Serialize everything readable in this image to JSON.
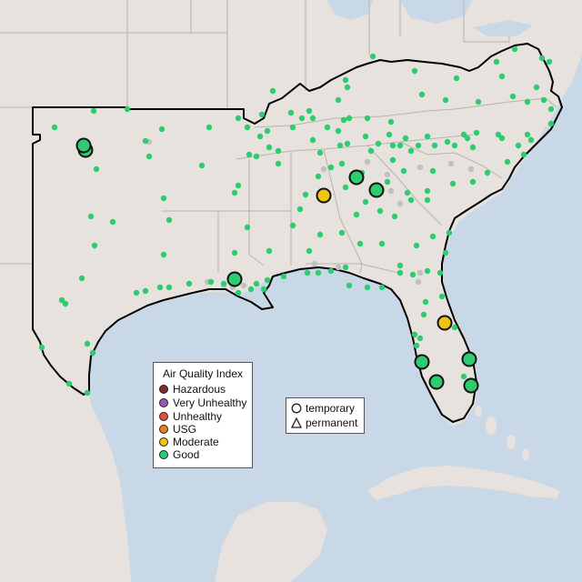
{
  "legend": {
    "title": "Air Quality Index",
    "items": [
      {
        "label": "Hazardous",
        "color": "#7e2c2c"
      },
      {
        "label": "Very Unhealthy",
        "color": "#9b59b6"
      },
      {
        "label": "Unhealthy",
        "color": "#e74c3c"
      },
      {
        "label": "USG",
        "color": "#e67e22"
      },
      {
        "label": "Moderate",
        "color": "#f1c40f"
      },
      {
        "label": "Good",
        "color": "#2ecc71"
      }
    ]
  },
  "shape_legend": {
    "items": [
      {
        "label": "temporary",
        "icon": "circle-outline-icon"
      },
      {
        "label": "permanent",
        "icon": "triangle-outline-icon"
      }
    ]
  },
  "colors": {
    "water": "#c9d8e6",
    "land": "#e7e2dd",
    "state_border": "#b9b3ae",
    "region_outline": "#000000",
    "no_data_marker": "#c0c0c0",
    "good": "#2ecc71",
    "moderate": "#f1c40f"
  }
}
